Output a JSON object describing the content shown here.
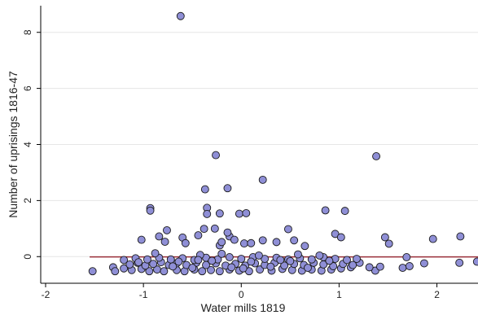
{
  "chart_data": {
    "type": "scatter",
    "xlabel": "Water mills 1819",
    "ylabel": "Number of uprisings 1816-47",
    "xlim": [
      -2.05,
      2.42
    ],
    "ylim": [
      -0.95,
      8.95
    ],
    "xticks": [
      -2,
      -1,
      0,
      1,
      2
    ],
    "yticks": [
      0,
      2,
      4,
      6,
      8
    ],
    "grid": "horizontal",
    "colors": {
      "point_fill": "#8f8fd6",
      "point_stroke": "#1a1a1a",
      "fit_line": "#9b2f3a",
      "grid": "#e6e6e6",
      "axis": "#000000"
    },
    "fit_line": {
      "x": [
        -1.55,
        2.42
      ],
      "y": [
        -0.01,
        -0.01
      ]
    },
    "series": [
      {
        "points": [
          [
            -0.62,
            8.58
          ],
          [
            -0.26,
            3.62
          ],
          [
            1.38,
            3.58
          ],
          [
            0.22,
            2.74
          ],
          [
            -0.37,
            2.4
          ],
          [
            -0.14,
            2.44
          ],
          [
            -0.35,
            1.74
          ],
          [
            -0.93,
            1.73
          ],
          [
            -0.93,
            1.64
          ],
          [
            -0.35,
            1.52
          ],
          [
            -0.22,
            1.54
          ],
          [
            -0.02,
            1.53
          ],
          [
            0.05,
            1.55
          ],
          [
            0.86,
            1.65
          ],
          [
            1.06,
            1.63
          ],
          [
            -0.38,
            0.99
          ],
          [
            -0.27,
            1.0
          ],
          [
            0.48,
            0.98
          ],
          [
            -0.76,
            0.94
          ],
          [
            -0.44,
            0.76
          ],
          [
            -0.84,
            0.72
          ],
          [
            -0.12,
            0.72
          ],
          [
            -0.14,
            0.86
          ],
          [
            -0.6,
            0.68
          ],
          [
            0.96,
            0.81
          ],
          [
            1.02,
            0.69
          ],
          [
            1.47,
            0.69
          ],
          [
            1.96,
            0.63
          ],
          [
            2.24,
            0.72
          ],
          [
            -1.02,
            0.6
          ],
          [
            -0.07,
            0.6
          ],
          [
            0.03,
            0.47
          ],
          [
            0.22,
            0.58
          ],
          [
            0.36,
            0.52
          ],
          [
            0.54,
            0.58
          ],
          [
            -0.78,
            0.53
          ],
          [
            -0.57,
            0.48
          ],
          [
            -0.22,
            0.4
          ],
          [
            0.1,
            0.48
          ],
          [
            1.51,
            0.46
          ],
          [
            0.65,
            0.38
          ],
          [
            -0.2,
            0.52
          ],
          [
            -1.52,
            -0.52
          ],
          [
            -1.31,
            -0.38
          ],
          [
            -1.29,
            -0.52
          ],
          [
            -1.2,
            -0.42
          ],
          [
            -1.12,
            -0.48
          ],
          [
            -1.02,
            -0.44
          ],
          [
            -0.94,
            -0.52
          ],
          [
            -0.86,
            -0.46
          ],
          [
            -0.79,
            -0.52
          ],
          [
            -0.66,
            -0.48
          ],
          [
            -0.58,
            -0.52
          ],
          [
            -0.48,
            -0.46
          ],
          [
            -0.4,
            -0.52
          ],
          [
            -0.31,
            -0.48
          ],
          [
            -0.22,
            -0.52
          ],
          [
            -0.12,
            -0.46
          ],
          [
            -0.02,
            -0.5
          ],
          [
            0.08,
            -0.52
          ],
          [
            0.19,
            -0.46
          ],
          [
            0.31,
            -0.5
          ],
          [
            0.42,
            -0.44
          ],
          [
            0.52,
            -0.48
          ],
          [
            0.62,
            -0.5
          ],
          [
            0.72,
            -0.46
          ],
          [
            0.82,
            -0.5
          ],
          [
            0.92,
            -0.46
          ],
          [
            1.02,
            -0.42
          ],
          [
            1.12,
            -0.38
          ],
          [
            1.37,
            -0.5
          ],
          [
            1.31,
            -0.38
          ],
          [
            1.65,
            -0.4
          ],
          [
            1.72,
            -0.34
          ],
          [
            1.87,
            -0.24
          ],
          [
            2.23,
            -0.22
          ],
          [
            2.41,
            -0.18
          ],
          [
            1.69,
            -0.02
          ],
          [
            -1.14,
            -0.28
          ],
          [
            -1.06,
            -0.22
          ],
          [
            -0.98,
            -0.32
          ],
          [
            -0.9,
            -0.26
          ],
          [
            -0.82,
            -0.2
          ],
          [
            -0.74,
            -0.3
          ],
          [
            -0.66,
            -0.24
          ],
          [
            -0.56,
            -0.3
          ],
          [
            -0.46,
            -0.22
          ],
          [
            -0.36,
            -0.3
          ],
          [
            -0.26,
            -0.24
          ],
          [
            -0.16,
            -0.32
          ],
          [
            -0.06,
            -0.26
          ],
          [
            0.04,
            -0.32
          ],
          [
            0.14,
            -0.24
          ],
          [
            0.24,
            -0.3
          ],
          [
            0.34,
            -0.22
          ],
          [
            0.44,
            -0.32
          ],
          [
            0.54,
            -0.26
          ],
          [
            0.64,
            -0.3
          ],
          [
            0.74,
            -0.22
          ],
          [
            0.84,
            -0.28
          ],
          [
            0.94,
            -0.34
          ],
          [
            1.04,
            -0.26
          ],
          [
            1.14,
            -0.3
          ],
          [
            1.21,
            -0.22
          ],
          [
            1.42,
            -0.36
          ],
          [
            -1.2,
            -0.12
          ],
          [
            -1.08,
            -0.06
          ],
          [
            -0.96,
            -0.1
          ],
          [
            -0.84,
            -0.04
          ],
          [
            -0.72,
            -0.1
          ],
          [
            -0.6,
            -0.06
          ],
          [
            -0.48,
            -0.12
          ],
          [
            -0.36,
            -0.04
          ],
          [
            -0.24,
            -0.1
          ],
          [
            -0.12,
            -0.02
          ],
          [
            0.0,
            -0.08
          ],
          [
            0.12,
            -0.02
          ],
          [
            0.24,
            -0.08
          ],
          [
            0.36,
            -0.04
          ],
          [
            0.48,
            -0.1
          ],
          [
            0.6,
            -0.06
          ],
          [
            0.72,
            -0.1
          ],
          [
            0.84,
            -0.02
          ],
          [
            0.96,
            -0.08
          ],
          [
            1.08,
            -0.12
          ],
          [
            1.18,
            -0.08
          ],
          [
            -1.05,
            -0.2
          ],
          [
            -0.7,
            -0.35
          ],
          [
            -0.5,
            -0.4
          ],
          [
            -0.3,
            -0.15
          ],
          [
            -0.1,
            -0.38
          ],
          [
            0.1,
            -0.18
          ],
          [
            0.3,
            -0.36
          ],
          [
            0.5,
            -0.16
          ],
          [
            0.68,
            -0.4
          ],
          [
            0.9,
            -0.15
          ],
          [
            -0.88,
            0.12
          ],
          [
            -0.42,
            0.06
          ],
          [
            0.18,
            0.04
          ],
          [
            0.58,
            0.08
          ],
          [
            -0.2,
            0.1
          ],
          [
            0.8,
            0.04
          ],
          [
            -0.64,
            -0.18
          ],
          [
            0.02,
            -0.42
          ],
          [
            -0.44,
            -0.12
          ],
          [
            0.4,
            -0.12
          ]
        ]
      }
    ]
  }
}
